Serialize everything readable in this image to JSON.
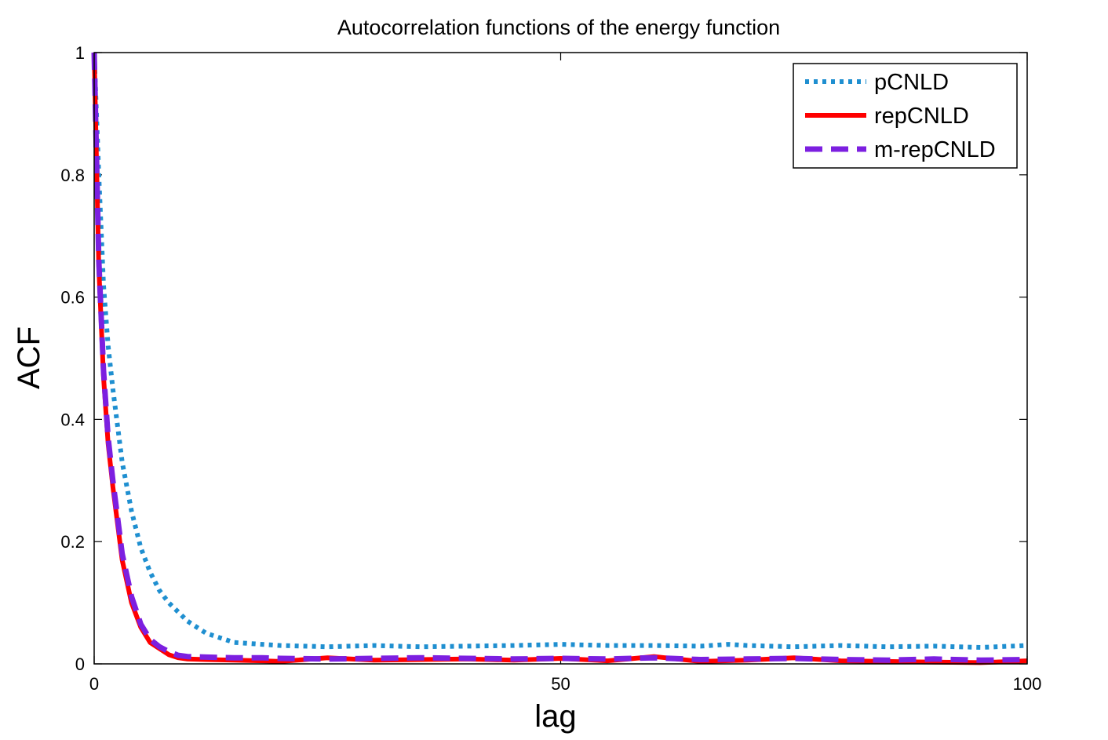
{
  "chart_data": {
    "type": "line",
    "title": "Autocorrelation functions of the energy function",
    "xlabel": "lag",
    "ylabel": "ACF",
    "xlim": [
      0,
      100
    ],
    "ylim": [
      0,
      1
    ],
    "x_ticks": [
      "0",
      "50",
      "100"
    ],
    "y_ticks": [
      "0",
      "0.2",
      "0.4",
      "0.6",
      "0.8",
      "1"
    ],
    "legend_position": "top-right",
    "grid": false,
    "series": [
      {
        "name": "pCNLD",
        "color": "#1f8fd0",
        "style": "dotted",
        "x": [
          0,
          0.5,
          1,
          1.5,
          2,
          3,
          4,
          5,
          6,
          7,
          8,
          10,
          12,
          15,
          18,
          20,
          25,
          30,
          35,
          40,
          45,
          50,
          55,
          60,
          65,
          68,
          70,
          75,
          80,
          85,
          90,
          95,
          100
        ],
        "y": [
          1.0,
          0.8,
          0.62,
          0.52,
          0.45,
          0.33,
          0.25,
          0.19,
          0.15,
          0.12,
          0.1,
          0.07,
          0.05,
          0.035,
          0.032,
          0.03,
          0.028,
          0.03,
          0.028,
          0.029,
          0.03,
          0.032,
          0.03,
          0.03,
          0.029,
          0.032,
          0.03,
          0.028,
          0.03,
          0.028,
          0.029,
          0.027,
          0.03
        ]
      },
      {
        "name": "repCNLD",
        "color": "#ff0000",
        "style": "solid",
        "x": [
          0,
          0.5,
          1,
          1.5,
          2,
          3,
          4,
          5,
          6,
          7,
          8,
          9,
          10,
          12,
          15,
          18,
          20,
          25,
          30,
          35,
          40,
          45,
          50,
          55,
          60,
          65,
          70,
          75,
          80,
          85,
          90,
          95,
          100
        ],
        "y": [
          1.0,
          0.65,
          0.47,
          0.36,
          0.29,
          0.17,
          0.1,
          0.06,
          0.035,
          0.025,
          0.015,
          0.01,
          0.008,
          0.007,
          0.006,
          0.005,
          0.004,
          0.01,
          0.006,
          0.007,
          0.008,
          0.006,
          0.009,
          0.005,
          0.012,
          0.004,
          0.006,
          0.01,
          0.005,
          0.004,
          0.003,
          0.002,
          0.005
        ]
      },
      {
        "name": "m-repCNLD",
        "color": "#7c1fe0",
        "style": "dashed",
        "x": [
          0,
          0.5,
          1,
          1.5,
          2,
          3,
          4,
          5,
          6,
          7,
          8,
          9,
          10,
          12,
          15,
          18,
          20,
          25,
          30,
          35,
          40,
          45,
          50,
          55,
          60,
          65,
          70,
          75,
          80,
          85,
          90,
          95,
          100
        ],
        "y": [
          1.0,
          0.66,
          0.48,
          0.37,
          0.3,
          0.18,
          0.11,
          0.065,
          0.04,
          0.028,
          0.02,
          0.014,
          0.012,
          0.011,
          0.01,
          0.01,
          0.009,
          0.008,
          0.009,
          0.01,
          0.009,
          0.008,
          0.009,
          0.008,
          0.01,
          0.007,
          0.008,
          0.009,
          0.007,
          0.006,
          0.008,
          0.006,
          0.007
        ]
      }
    ]
  }
}
